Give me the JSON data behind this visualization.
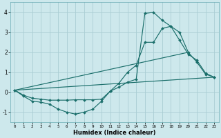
{
  "xlabel": "Humidex (Indice chaleur)",
  "xlim": [
    -0.5,
    23.5
  ],
  "ylim": [
    -1.5,
    4.5
  ],
  "yticks": [
    -1,
    0,
    1,
    2,
    3,
    4
  ],
  "xticks": [
    0,
    1,
    2,
    3,
    4,
    5,
    6,
    7,
    8,
    9,
    10,
    11,
    12,
    13,
    14,
    15,
    16,
    17,
    18,
    19,
    20,
    21,
    22,
    23
  ],
  "bg_color": "#cde8ec",
  "line_color": "#1a6e6a",
  "grid_color": "#aacdd4",
  "curve1_x": [
    0,
    1,
    2,
    3,
    4,
    5,
    6,
    7,
    8,
    9,
    10,
    11,
    12,
    13,
    14,
    15,
    16,
    17,
    18,
    19,
    20,
    21,
    22,
    23
  ],
  "curve1_y": [
    0.1,
    -0.2,
    -0.45,
    -0.5,
    -0.6,
    -0.85,
    -1.0,
    -1.1,
    -1.0,
    -0.85,
    -0.45,
    0.05,
    0.45,
    1.0,
    1.35,
    2.5,
    2.5,
    3.2,
    3.3,
    3.0,
    2.0,
    1.5,
    0.9,
    0.75
  ],
  "curve2_x": [
    0,
    1,
    2,
    3,
    4,
    5,
    6,
    7,
    8,
    9,
    10,
    11,
    12,
    13,
    14,
    15,
    16,
    17,
    18,
    19,
    20,
    21,
    22,
    23
  ],
  "curve2_y": [
    0.1,
    -0.15,
    -0.3,
    -0.35,
    -0.4,
    -0.4,
    -0.4,
    -0.38,
    -0.38,
    -0.38,
    -0.35,
    0.05,
    0.25,
    0.5,
    0.65,
    3.95,
    4.0,
    3.6,
    3.3,
    2.6,
    1.9,
    1.6,
    0.95,
    0.75
  ],
  "line1_x": [
    0,
    23
  ],
  "line1_y": [
    0.1,
    0.75
  ],
  "line2_x": [
    0,
    20
  ],
  "line2_y": [
    0.1,
    2.0
  ]
}
